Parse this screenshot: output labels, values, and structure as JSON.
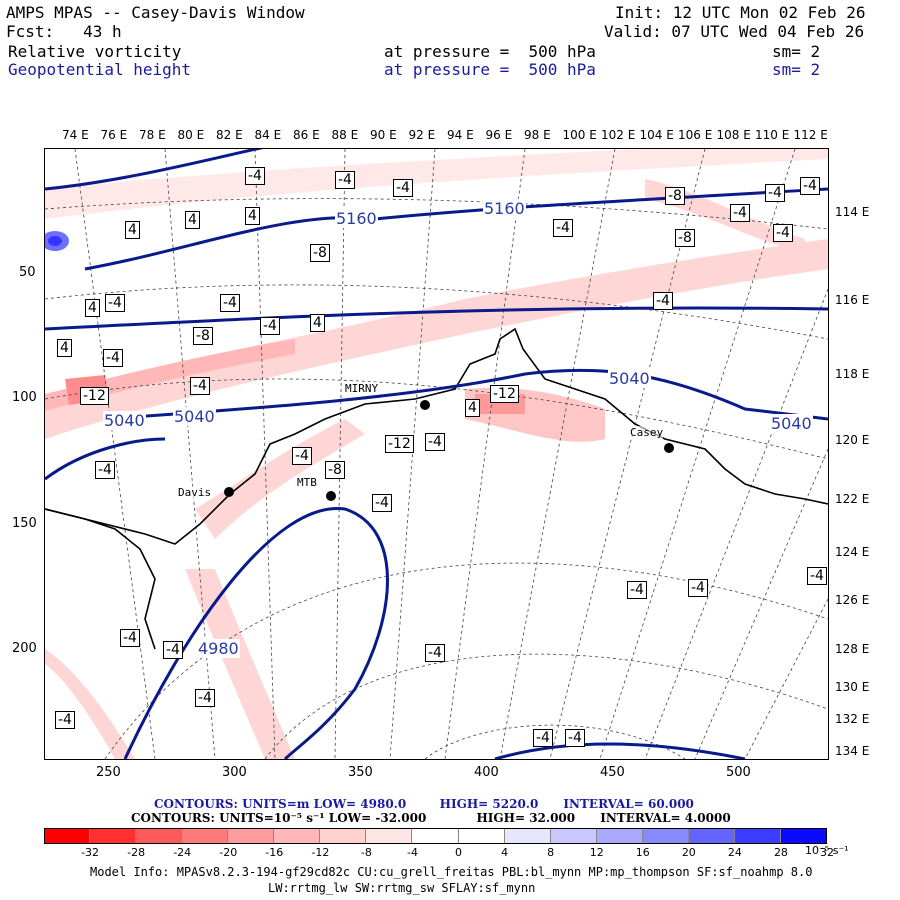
{
  "header": {
    "title": "AMPS MPAS -- Casey-Davis Window",
    "forecast": "Fcst:   43 h",
    "init": "Init: 12 UTC Mon 02 Feb 26",
    "valid": "Valid: 07 UTC Wed 04 Feb 26",
    "field1": "Relative vorticity",
    "field1_level": "at pressure =  500 hPa",
    "field1_sm": "sm= 2",
    "field2": "Geopotential height",
    "field2_level": "at pressure =  500 hPa",
    "field2_sm": "sm= 2"
  },
  "map": {
    "top_lon_labels": [
      "74 E",
      "76 E",
      "78 E",
      "80 E",
      "82 E",
      "84 E",
      "86 E",
      "88 E",
      "90 E",
      "92 E",
      "94 E",
      "96 E",
      "98 E",
      "100 E",
      "102 E",
      "104 E",
      "106 E",
      "108 E",
      "110 E",
      "112 E"
    ],
    "right_lon_labels": [
      "114 E",
      "116 E",
      "118 E",
      "120 E",
      "122 E",
      "124 E",
      "126 E",
      "128 E",
      "130 E",
      "132 E",
      "134 E"
    ],
    "y_axis_ticks": [
      "50",
      "100",
      "150",
      "200"
    ],
    "x_axis_ticks": [
      "250",
      "300",
      "350",
      "400",
      "450",
      "500"
    ],
    "stations": [
      "MIRNY",
      "Davis",
      "MTB",
      "Casey"
    ],
    "height_contour_labels": [
      "5160",
      "5160",
      "5040",
      "5040",
      "5040",
      "5040",
      "4980"
    ],
    "vorticity_box_labels": [
      "-4",
      "4",
      "-8",
      "-12",
      "4",
      "-4"
    ]
  },
  "contour_info": {
    "line1": {
      "label": "CONTOURS:",
      "units": "UNITS=m",
      "low": "LOW=   4980.0",
      "high": "HIGH=   5220.0",
      "interval": "INTERVAL=   60.000"
    },
    "line2": {
      "label": "CONTOURS:",
      "units": "UNITS=10⁻⁵ s⁻¹",
      "low": "LOW= -32.000",
      "high": "HIGH=  32.000",
      "interval": "INTERVAL=   4.0000"
    }
  },
  "colorbar": {
    "ticks": [
      "-32",
      "-28",
      "-24",
      "-20",
      "-16",
      "-12",
      "-8",
      "-4",
      "0",
      "4",
      "8",
      "12",
      "16",
      "20",
      "24",
      "28",
      "32"
    ],
    "unit": "10⁻⁵ s⁻¹",
    "colors": [
      "#ff0000",
      "#ff3030",
      "#ff5a5a",
      "#ff7a7a",
      "#ff9c9c",
      "#ffb8b8",
      "#ffd2d2",
      "#ffe6e6",
      "#ffffff",
      "#ffffff",
      "#e6e6ff",
      "#c8c8ff",
      "#a8a8ff",
      "#8888ff",
      "#6464ff",
      "#3c3cff",
      "#0a0aff"
    ]
  },
  "footer": {
    "line1": "Model Info: MPASv8.2.3-194-gf29cd82c CU:cu_grell_freitas PBL:bl_mynn MP:mp_thompson SF:sf_noahmp 8.0",
    "line2": "LW:rrtmg_lw SW:rrtmg_sw SFLAY:sf_mynn"
  }
}
